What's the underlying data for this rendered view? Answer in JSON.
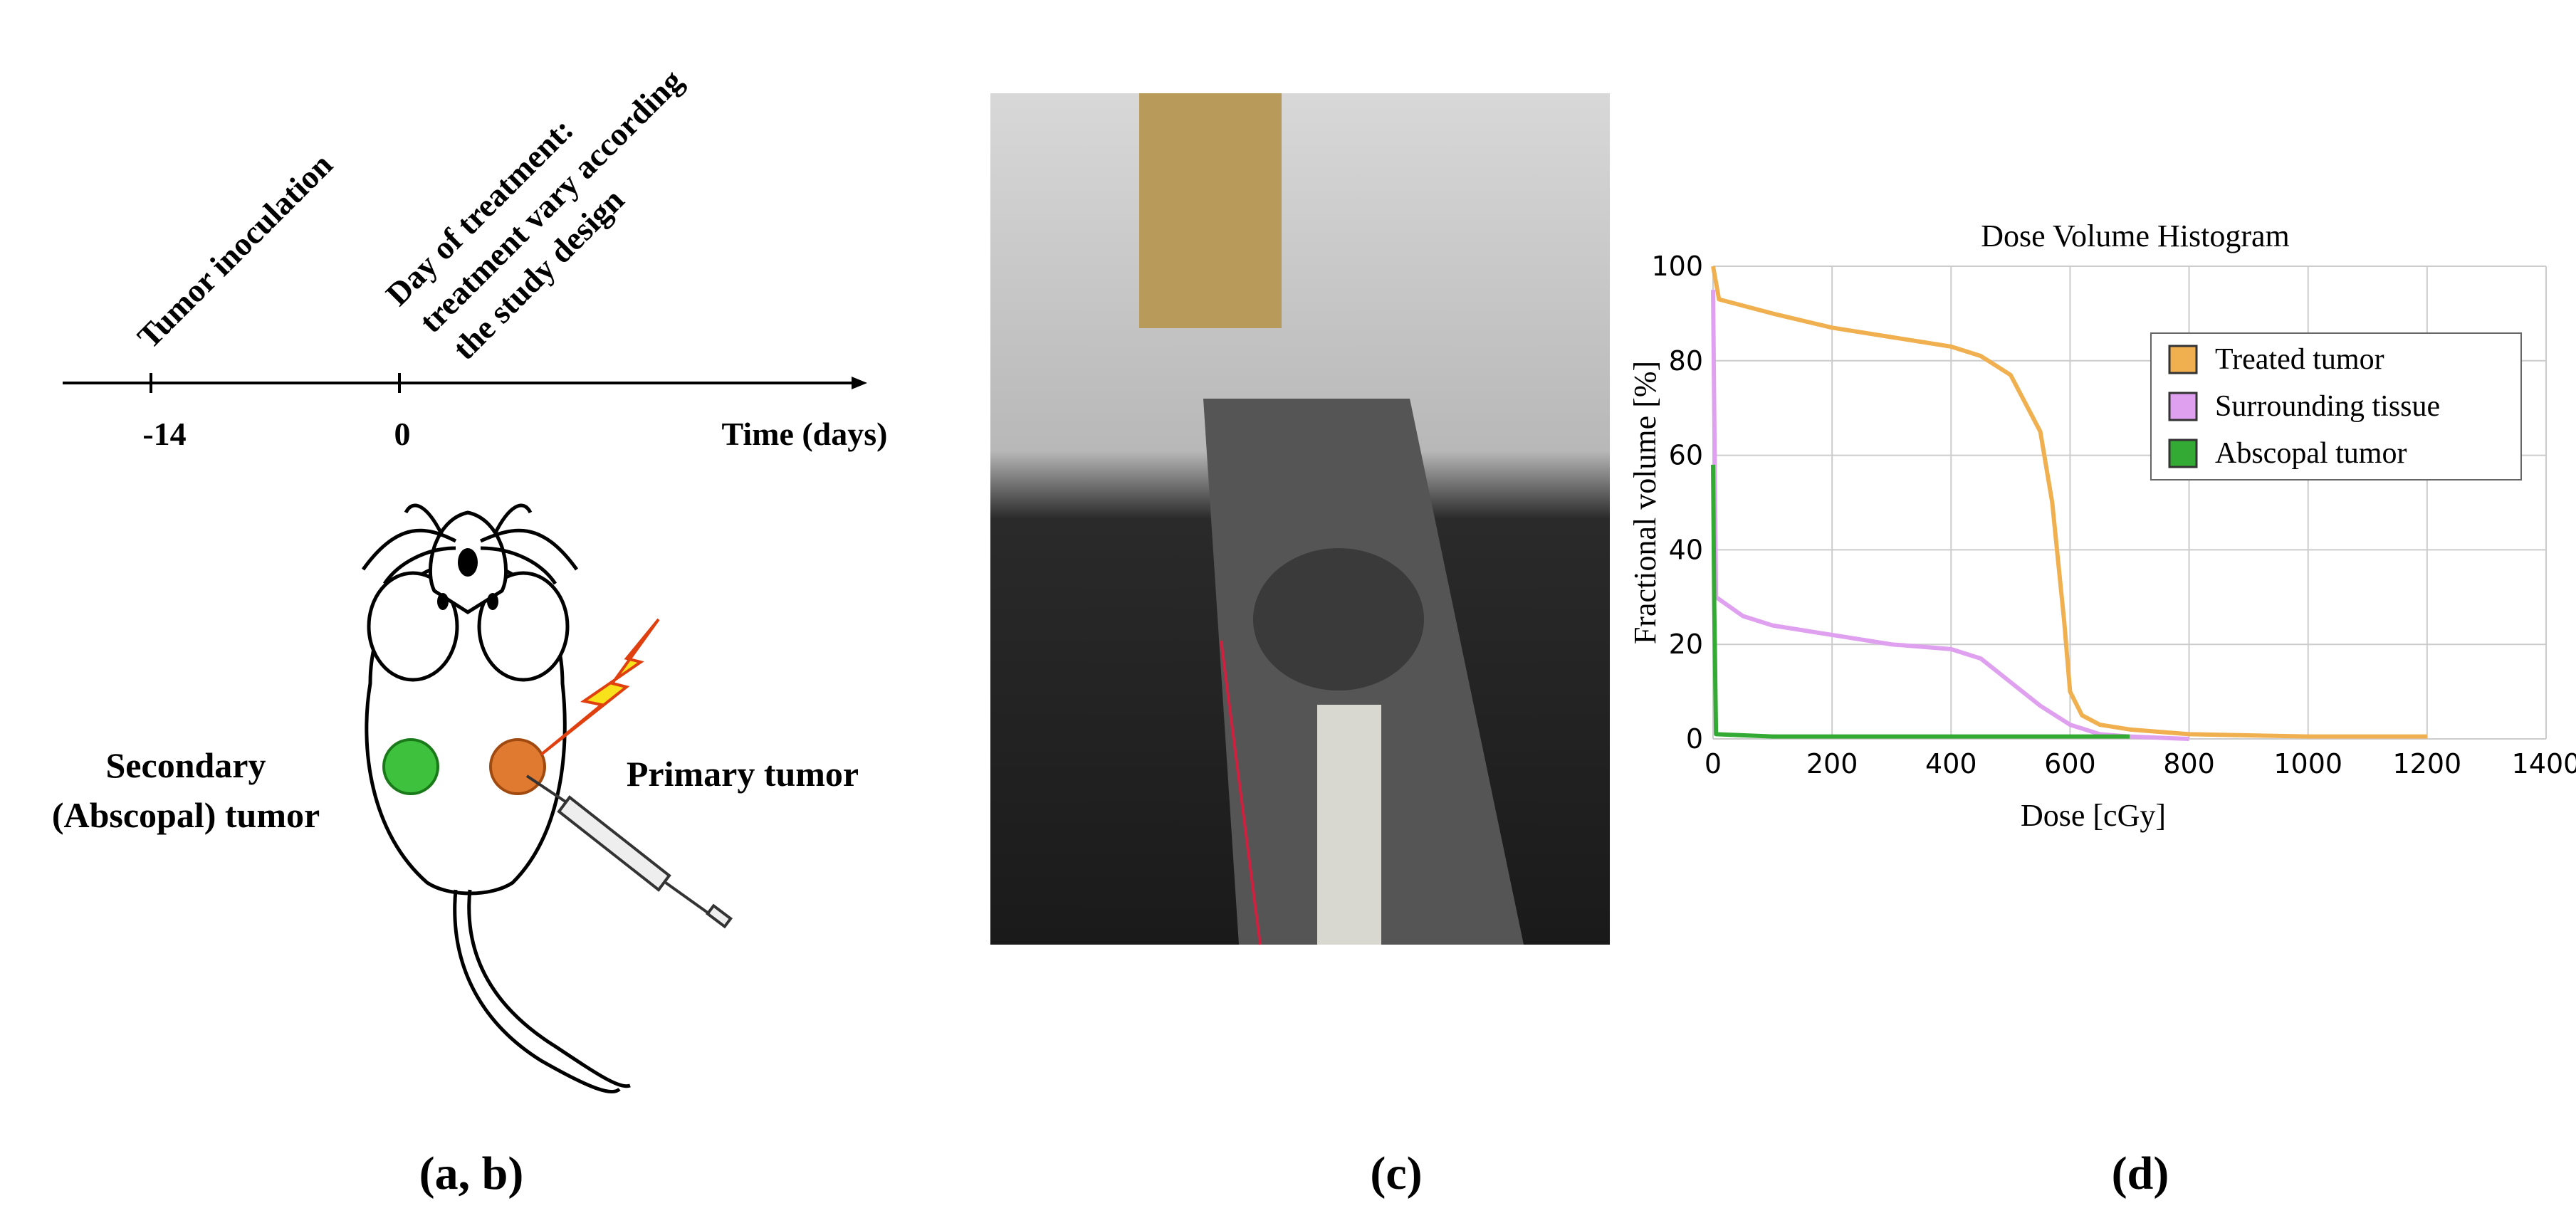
{
  "timeline": {
    "events": [
      "Tumor inoculation",
      "Day of treatment:",
      "treatment vary according",
      "the study design"
    ],
    "ticks": [
      "-14",
      "0"
    ],
    "axis_label": "Time (days)"
  },
  "diagram": {
    "secondary_label": [
      "Secondary",
      "(Abscopal) tumor"
    ],
    "primary_label": "Primary tumor"
  },
  "panel_labels": [
    "(a, b)",
    "(c)",
    "(d)"
  ],
  "chart_data": {
    "type": "line",
    "title": "Dose Volume Histogram",
    "x_label": "Dose [cGy]",
    "y_label": "Fractional volume [%]",
    "xlim": [
      0,
      1400
    ],
    "xticks": [
      0,
      200,
      400,
      600,
      800,
      1000,
      1200,
      1400
    ],
    "ylim": [
      0,
      100
    ],
    "yticks": [
      0,
      20,
      40,
      60,
      80,
      100
    ],
    "grid": true,
    "legend": "upper right",
    "series": [
      {
        "name": "Treated tumor",
        "color": "#f0b050",
        "x": [
          0,
          10,
          100,
          200,
          300,
          400,
          450,
          500,
          550,
          570,
          590,
          600,
          620,
          650,
          700,
          800,
          1000,
          1200
        ],
        "values": [
          100,
          93,
          90,
          87,
          85,
          83,
          81,
          77,
          65,
          50,
          25,
          10,
          5,
          3,
          2,
          1,
          0.5,
          0.5
        ]
      },
      {
        "name": "Surrounding tissue",
        "color": "#e0a0f0",
        "x": [
          0,
          5,
          50,
          100,
          200,
          300,
          400,
          450,
          500,
          550,
          600,
          650,
          700,
          800
        ],
        "values": [
          95,
          30,
          26,
          24,
          22,
          20,
          19,
          17,
          12,
          7,
          3,
          1,
          0.5,
          0
        ]
      },
      {
        "name": "Abscopal tumor",
        "color": "#33aa33",
        "x": [
          0,
          2,
          5,
          100,
          700
        ],
        "values": [
          58,
          28,
          1,
          0.5,
          0.5
        ]
      }
    ]
  }
}
